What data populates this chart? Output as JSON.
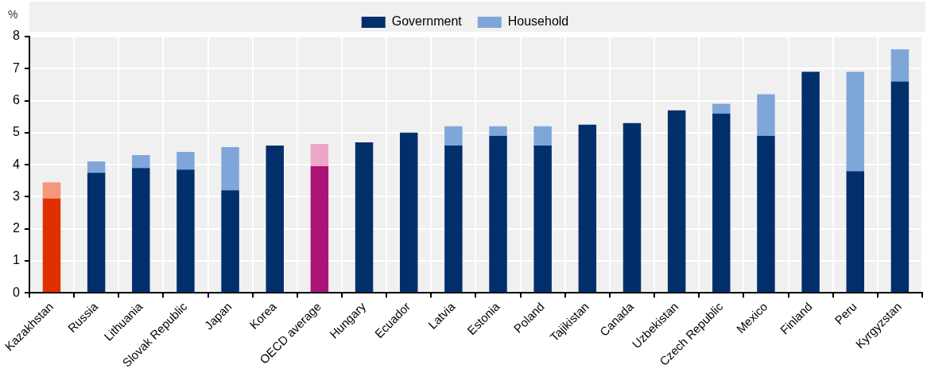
{
  "chart_data": {
    "type": "bar",
    "stacked": true,
    "ylabel": "%",
    "legend": "top",
    "grid": true,
    "categories": [
      "Kazakhstan",
      "Russia",
      "Lithuania",
      "Slovak Republic",
      "Japan",
      "Korea",
      "OECD average",
      "Hungary",
      "Ecuador",
      "Latvia",
      "Estonia",
      "Poland",
      "Tajikistan",
      "Canada",
      "Uzbekistan",
      "Czech Republic",
      "Mexico",
      "Finland",
      "Peru",
      "Kyrgyzstan"
    ],
    "ylim": [
      0,
      8
    ],
    "yticks": [
      0,
      1,
      2,
      3,
      4,
      5,
      6,
      7,
      8
    ],
    "series": [
      {
        "name": "Government",
        "color": "#002f6c",
        "colors": [
          "#e03000",
          "#002f6c",
          "#002f6c",
          "#002f6c",
          "#002f6c",
          "#002f6c",
          "#ab1477",
          "#002f6c",
          "#002f6c",
          "#002f6c",
          "#002f6c",
          "#002f6c",
          "#002f6c",
          "#002f6c",
          "#002f6c",
          "#002f6c",
          "#002f6c",
          "#002f6c",
          "#002f6c",
          "#002f6c"
        ],
        "values": [
          2.95,
          3.75,
          3.9,
          3.85,
          3.2,
          4.6,
          3.95,
          4.7,
          5.0,
          4.6,
          4.9,
          4.6,
          5.25,
          5.3,
          5.7,
          5.6,
          4.9,
          6.9,
          3.8,
          6.6
        ]
      },
      {
        "name": "Household",
        "color": "#7fa6d8",
        "colors": [
          "#f4977a",
          "#7fa6d8",
          "#7fa6d8",
          "#7fa6d8",
          "#7fa6d8",
          "#7fa6d8",
          "#eba6c8",
          "#7fa6d8",
          "#7fa6d8",
          "#7fa6d8",
          "#7fa6d8",
          "#7fa6d8",
          "#7fa6d8",
          "#7fa6d8",
          "#7fa6d8",
          "#7fa6d8",
          "#7fa6d8",
          "#7fa6d8",
          "#7fa6d8",
          "#7fa6d8"
        ],
        "values": [
          0.5,
          0.35,
          0.4,
          0.55,
          1.35,
          null,
          0.7,
          null,
          null,
          0.6,
          0.3,
          0.6,
          null,
          null,
          null,
          0.3,
          1.3,
          null,
          3.1,
          1.0
        ]
      }
    ]
  }
}
